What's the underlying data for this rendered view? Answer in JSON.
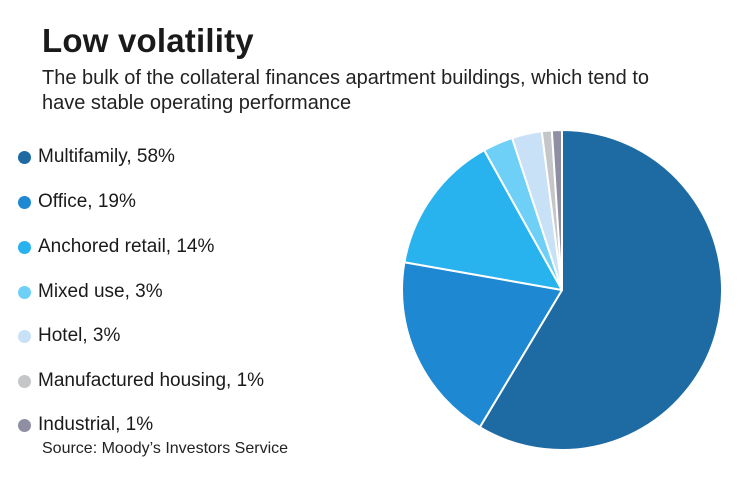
{
  "title": "Low volatility",
  "subtitle": "The bulk of the collateral finances apartment buildings, which tend to have stable operating performance",
  "source": "Source: Moody’s Investors Service",
  "chart_data": {
    "type": "pie",
    "title": "Low volatility",
    "legend_position": "left",
    "slices": [
      {
        "label": "Multifamily, 58%",
        "value": 58,
        "color": "#1e6aa3"
      },
      {
        "label": "Office, 19%",
        "value": 19,
        "color": "#1f88d2"
      },
      {
        "label": "Anchored retail, 14%",
        "value": 14,
        "color": "#28b3ef"
      },
      {
        "label": "Mixed use, 3%",
        "value": 3,
        "color": "#6fd0f7"
      },
      {
        "label": "Hotel, 3%",
        "value": 3,
        "color": "#c9e1f7"
      },
      {
        "label": "Manufactured housing, 1%",
        "value": 1,
        "color": "#c4c6c8"
      },
      {
        "label": "Industrial, 1%",
        "value": 1,
        "color": "#8f8fa3"
      }
    ]
  }
}
